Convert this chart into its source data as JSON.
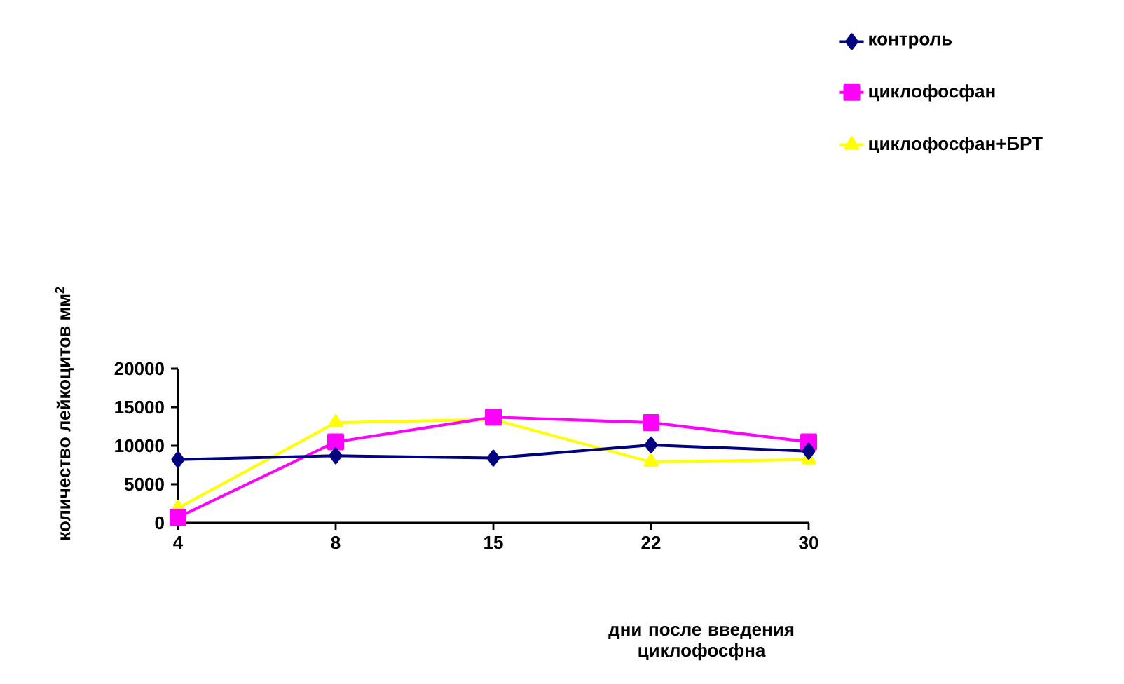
{
  "chart_data": {
    "type": "line",
    "xlabel": "дни после введения циклофосфна",
    "ylabel": "количество лейкоцитов мм$^{2}$",
    "categories": [
      "4",
      "8",
      "15",
      "22",
      "30"
    ],
    "ylim": [
      0,
      20000
    ],
    "yticks": [
      0,
      5000,
      10000,
      15000,
      20000
    ],
    "legend": "top right",
    "line_style": "solid",
    "series": [
      {
        "name": "контроль",
        "color": "#000080",
        "marker": "diamond",
        "values": [
          8200,
          8700,
          8400,
          10100,
          9300
        ]
      },
      {
        "name": "циклофосфан",
        "color": "#ff00ff",
        "marker": "square",
        "values": [
          700,
          10500,
          13700,
          13000,
          10500
        ]
      },
      {
        "name": "циклофосфан+БРТ",
        "color": "#ffff00",
        "marker": "triangle",
        "values": [
          1900,
          13000,
          13400,
          7900,
          8200
        ]
      }
    ]
  }
}
